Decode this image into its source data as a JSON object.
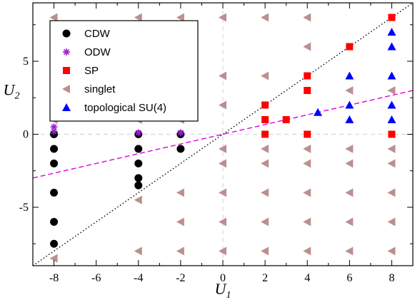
{
  "chart_data": {
    "type": "scatter",
    "xlabel": "U",
    "xlabel_sub": "1",
    "ylabel": "U",
    "ylabel_sub": "2",
    "xlim": [
      -9,
      9
    ],
    "ylim": [
      -9,
      9
    ],
    "x_ticks": [
      -8,
      -6,
      -4,
      -2,
      0,
      2,
      4,
      6,
      8
    ],
    "x_tick_labels": [
      "-8",
      "-6",
      "-4",
      "-2",
      "0",
      "2",
      "4",
      "6",
      "8"
    ],
    "y_ticks": [
      -5,
      0,
      5
    ],
    "y_tick_labels": [
      "-5",
      "0",
      "5"
    ],
    "grid": false,
    "legend_position": "top-left",
    "reference_lines": [
      {
        "style": "dashed",
        "color": "#d0d0d0",
        "orientation": "vertical",
        "value": 0
      },
      {
        "style": "dashed",
        "color": "#d0d0d0",
        "orientation": "horizontal",
        "value": 0
      }
    ],
    "fit_lines": [
      {
        "style": "dotted",
        "color": "#000000",
        "slope": 1.0,
        "intercept": 0
      },
      {
        "style": "dashed",
        "color": "#e000e0",
        "slope": 0.333,
        "intercept": 0
      }
    ],
    "series": [
      {
        "name": "CDW",
        "marker": "circle",
        "color": "#000000",
        "points": [
          [
            -8,
            0
          ],
          [
            -8,
            -1
          ],
          [
            -8,
            -2
          ],
          [
            -8,
            -4
          ],
          [
            -8,
            -6
          ],
          [
            -8,
            -7.5
          ],
          [
            -4,
            0
          ],
          [
            -4,
            -1
          ],
          [
            -4,
            -2
          ],
          [
            -4,
            -3
          ],
          [
            -4,
            -3.5
          ],
          [
            -2,
            0
          ],
          [
            -2,
            -1
          ]
        ]
      },
      {
        "name": "ODW",
        "marker": "asterisk",
        "color": "#9a1fd0",
        "points": [
          [
            -8,
            0.5
          ],
          [
            -8,
            0.2
          ],
          [
            -4,
            0.1
          ],
          [
            -2,
            0.1
          ]
        ]
      },
      {
        "name": "SP",
        "marker": "square",
        "color": "#ff0000",
        "points": [
          [
            2,
            2
          ],
          [
            2,
            1
          ],
          [
            2,
            0
          ],
          [
            3,
            1
          ],
          [
            4,
            4
          ],
          [
            4,
            3
          ],
          [
            4,
            0
          ],
          [
            6,
            6
          ],
          [
            8,
            8
          ],
          [
            8,
            0
          ]
        ]
      },
      {
        "name": "singlet",
        "marker": "triangle-left",
        "color": "#bc8f8f",
        "points": [
          [
            -8,
            8
          ],
          [
            -4,
            8
          ],
          [
            -2,
            8
          ],
          [
            0,
            8
          ],
          [
            2,
            8
          ],
          [
            4,
            8
          ],
          [
            -8,
            6
          ],
          [
            -4,
            6
          ],
          [
            -2,
            6
          ],
          [
            4,
            6
          ],
          [
            -8,
            4
          ],
          [
            -4,
            4
          ],
          [
            -2,
            4
          ],
          [
            0,
            4
          ],
          [
            2,
            4
          ],
          [
            -8,
            2
          ],
          [
            -4,
            2
          ],
          [
            -2,
            2
          ],
          [
            0,
            2
          ],
          [
            8,
            3
          ],
          [
            -8,
            1
          ],
          [
            -4,
            1
          ],
          [
            -2,
            1
          ],
          [
            6,
            3
          ],
          [
            0,
            -1
          ],
          [
            2,
            -1
          ],
          [
            4,
            -1
          ],
          [
            6,
            -1
          ],
          [
            8,
            -1
          ],
          [
            0,
            -2
          ],
          [
            2,
            -2
          ],
          [
            4,
            -2
          ],
          [
            6,
            -2
          ],
          [
            8,
            -2
          ],
          [
            -4,
            -4.5
          ],
          [
            -2,
            -4
          ],
          [
            0,
            -4
          ],
          [
            2,
            -4
          ],
          [
            4,
            -4
          ],
          [
            6,
            -4
          ],
          [
            8,
            -4
          ],
          [
            -2,
            -6
          ],
          [
            0,
            -6
          ],
          [
            2,
            -6
          ],
          [
            4,
            -6
          ],
          [
            6,
            -6
          ],
          [
            8,
            -6
          ],
          [
            -8,
            -8.5
          ],
          [
            -4,
            -8
          ],
          [
            -2,
            -8
          ],
          [
            0,
            -8
          ],
          [
            2,
            -8
          ],
          [
            4,
            -8
          ],
          [
            6,
            -8
          ],
          [
            8,
            -8
          ]
        ]
      },
      {
        "name": "topological SU(4)",
        "marker": "triangle-up",
        "color": "#0000ff",
        "points": [
          [
            8,
            7
          ],
          [
            8,
            6
          ],
          [
            6,
            4
          ],
          [
            8,
            4
          ],
          [
            4.5,
            1.5
          ],
          [
            6,
            2
          ],
          [
            8,
            2
          ],
          [
            6,
            1
          ],
          [
            8,
            1
          ]
        ]
      }
    ]
  }
}
